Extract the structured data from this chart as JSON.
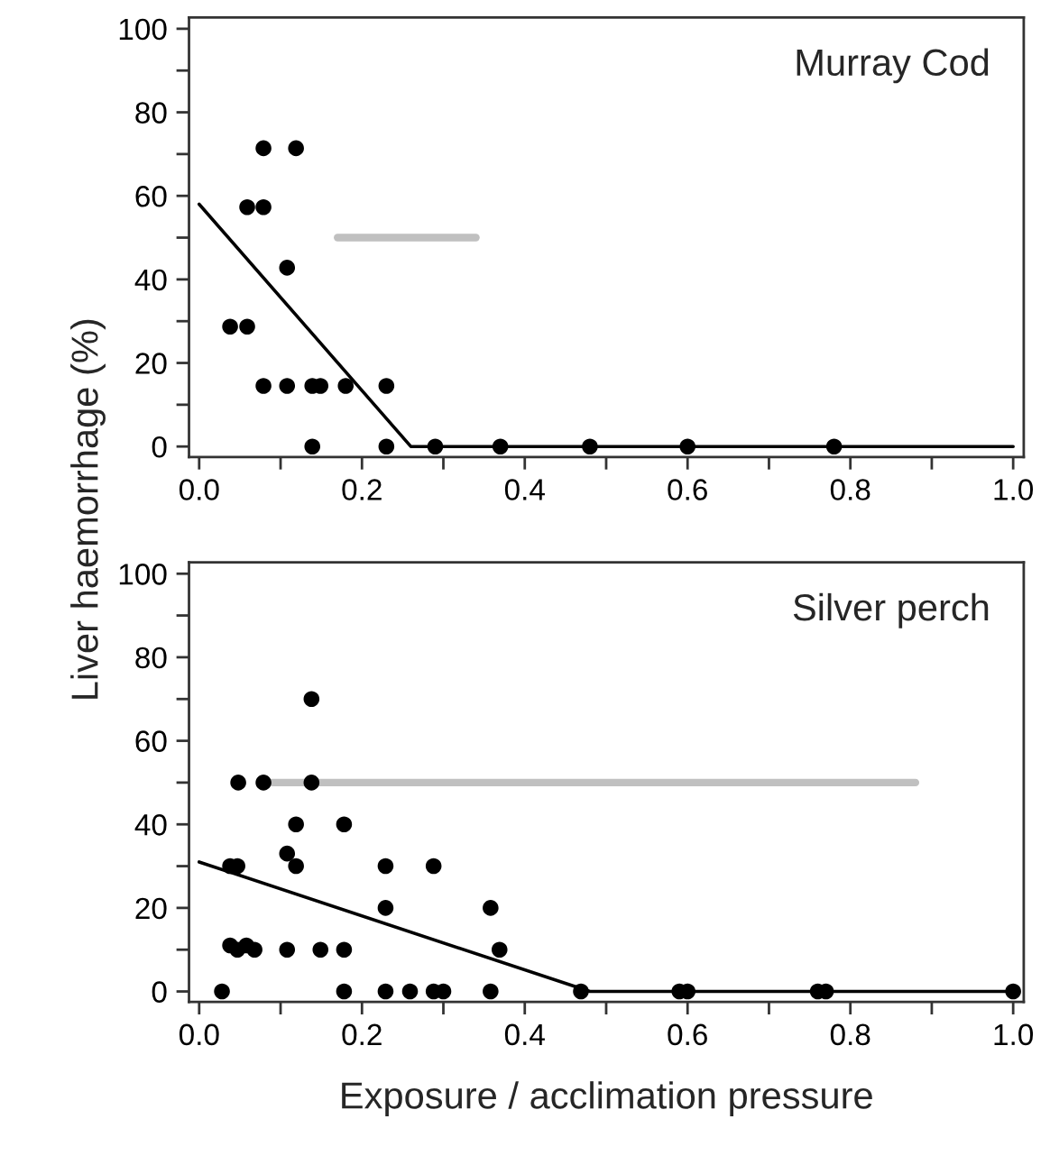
{
  "chart_data": [
    {
      "type": "scatter",
      "ylabel": "Liver haemorrhage (%)",
      "annotations": [
        "Murray Cod"
      ],
      "xlim": [
        -0.0125,
        1.013
      ],
      "ylim": [
        -2.5,
        102.7
      ],
      "xticks": [
        {
          "value": 0,
          "label": "0.0"
        },
        {
          "value": 0.1,
          "label": null
        },
        {
          "value": 0.2,
          "label": "0.2"
        },
        {
          "value": 0.3,
          "label": null
        },
        {
          "value": 0.4,
          "label": "0.4"
        },
        {
          "value": 0.5,
          "label": null
        },
        {
          "value": 0.6,
          "label": "0.6"
        },
        {
          "value": 0.7,
          "label": null
        },
        {
          "value": 0.8,
          "label": "0.8"
        },
        {
          "value": 0.9,
          "label": null
        },
        {
          "value": 1.0,
          "label": "1.0"
        }
      ],
      "yticks": [
        0,
        {
          "value": 10,
          "label": null
        },
        20,
        {
          "value": 30,
          "label": null
        },
        40,
        {
          "value": 50,
          "label": null
        },
        60,
        {
          "value": 70,
          "label": null
        },
        80,
        {
          "value": 90,
          "label": null
        },
        100
      ],
      "grid": false,
      "legend": false,
      "series": [
        {
          "marker": "circle",
          "color": "#000000",
          "x": [
            0.038,
            0.059,
            0.059,
            0.079,
            0.079,
            0.119,
            0.108,
            0.079,
            0.108,
            0.139,
            0.149,
            0.18,
            0.23,
            0.139,
            0.23,
            0.29,
            0.37,
            0.48,
            0.6,
            0.78
          ],
          "values": [
            28.7,
            28.7,
            57.3,
            57.3,
            71.4,
            71.4,
            42.8,
            14.5,
            14.5,
            14.5,
            14.5,
            14.5,
            14.5,
            0,
            0,
            0,
            0,
            0,
            0,
            0
          ]
        },
        {
          "type": "line",
          "marker": "none",
          "color": "#000000",
          "x": [
            0,
            0.26,
            1.0
          ],
          "values": [
            58,
            0,
            0
          ]
        },
        {
          "type": "line",
          "marker": "none",
          "color": "#c0c0c0",
          "x": [
            0.17,
            0.34
          ],
          "values": [
            50,
            50
          ]
        }
      ]
    },
    {
      "type": "scatter",
      "xlabel": "Exposure / acclimation pressure",
      "annotations": [
        "Silver perch"
      ],
      "xlim": [
        -0.0125,
        1.013
      ],
      "ylim": [
        -2.5,
        102.7
      ],
      "xticks": [
        {
          "value": 0,
          "label": "0.0"
        },
        {
          "value": 0.1,
          "label": null
        },
        {
          "value": 0.2,
          "label": "0.2"
        },
        {
          "value": 0.3,
          "label": null
        },
        {
          "value": 0.4,
          "label": "0.4"
        },
        {
          "value": 0.5,
          "label": null
        },
        {
          "value": 0.6,
          "label": "0.6"
        },
        {
          "value": 0.7,
          "label": null
        },
        {
          "value": 0.8,
          "label": "0.8"
        },
        {
          "value": 0.9,
          "label": null
        },
        {
          "value": 1.0,
          "label": "1.0"
        }
      ],
      "yticks": [
        0,
        {
          "value": 10,
          "label": null
        },
        20,
        {
          "value": 30,
          "label": null
        },
        40,
        {
          "value": 50,
          "label": null
        },
        60,
        {
          "value": 70,
          "label": null
        },
        80,
        {
          "value": 90,
          "label": null
        },
        100
      ],
      "grid": false,
      "legend": false,
      "series": [
        {
          "marker": "circle",
          "color": "#000000",
          "x": [
            0.028,
            0.038,
            0.047,
            0.058,
            0.068,
            0.038,
            0.047,
            0.048,
            0.079,
            0.138,
            0.138,
            0.119,
            0.108,
            0.119,
            0.178,
            0.108,
            0.149,
            0.178,
            0.178,
            0.229,
            0.229,
            0.229,
            0.259,
            0.288,
            0.3,
            0.288,
            0.358,
            0.369,
            0.358,
            0.469,
            0.59,
            0.6,
            0.76,
            0.77,
            1.0
          ],
          "values": [
            0,
            11,
            10,
            11,
            10,
            30,
            30,
            50,
            50,
            50,
            70,
            40,
            33,
            30,
            40,
            10,
            10,
            10,
            0,
            30,
            20,
            0,
            0,
            0,
            0,
            30,
            20,
            10,
            0,
            0,
            0,
            0,
            0,
            0,
            0
          ]
        },
        {
          "type": "line",
          "marker": "none",
          "color": "#000000",
          "x": [
            0,
            0.48,
            1.0
          ],
          "values": [
            31,
            0,
            0
          ]
        },
        {
          "type": "line",
          "marker": "none",
          "color": "#c0c0c0",
          "x": [
            0.09,
            0.88
          ],
          "values": [
            50,
            50
          ]
        }
      ]
    }
  ]
}
